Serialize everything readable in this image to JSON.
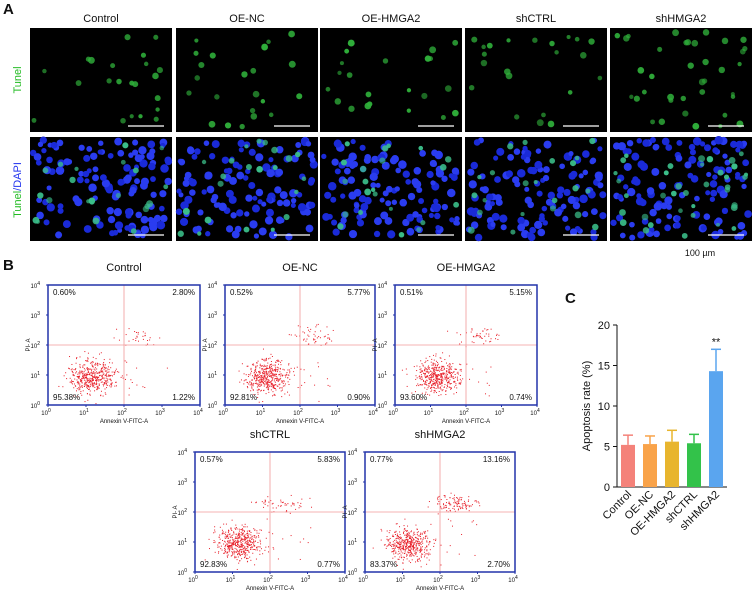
{
  "panels": {
    "a": "A",
    "b": "B",
    "c": "C"
  },
  "microscopy": {
    "columns": [
      "Control",
      "OE-NC",
      "OE-HMGA2",
      "shCTRL",
      "shHMGA2"
    ],
    "row_tunel": "Tunel",
    "row_merge": [
      "Tunel",
      "/DAPI"
    ],
    "scale_bar": "100 µm"
  },
  "flow": {
    "x_label": "Annexin V-FITC-A",
    "y_label": "PI- A",
    "tick_base": "10",
    "tick_exponents": [
      0,
      1,
      2,
      3,
      4
    ],
    "plots": [
      {
        "title": "Control",
        "quadrants": [
          "0.60%",
          "2.80%",
          "95.38%",
          "1.22%"
        ]
      },
      {
        "title": "OE-NC",
        "quadrants": [
          "0.52%",
          "5.77%",
          "92.81%",
          "0.90%"
        ]
      },
      {
        "title": "OE-HMGA2",
        "quadrants": [
          "0.51%",
          "5.15%",
          "93.60%",
          "0.74%"
        ]
      },
      {
        "title": "shCTRL",
        "quadrants": [
          "0.57%",
          "5.83%",
          "92.83%",
          "0.77%"
        ]
      },
      {
        "title": "shHMGA2",
        "quadrants": [
          "0.77%",
          "13.16%",
          "83.37%",
          "2.70%"
        ]
      }
    ]
  },
  "chart_data": {
    "type": "bar",
    "y_label": "Apoptosis rate (%)",
    "categories": [
      "Control",
      "OE-NC",
      "OE-HMGA2",
      "shCTRL",
      "shHMGA2"
    ],
    "values": [
      5.2,
      5.3,
      5.6,
      5.4,
      14.3
    ],
    "errors": [
      1.2,
      1.0,
      1.4,
      1.1,
      2.7
    ],
    "colors": [
      "#f4827a",
      "#f9a34a",
      "#e8b52e",
      "#33c24a",
      "#5aa5ef"
    ],
    "annotation": "**",
    "ylim": [
      0,
      20
    ],
    "yticks": [
      0,
      5,
      10,
      15,
      20
    ]
  }
}
